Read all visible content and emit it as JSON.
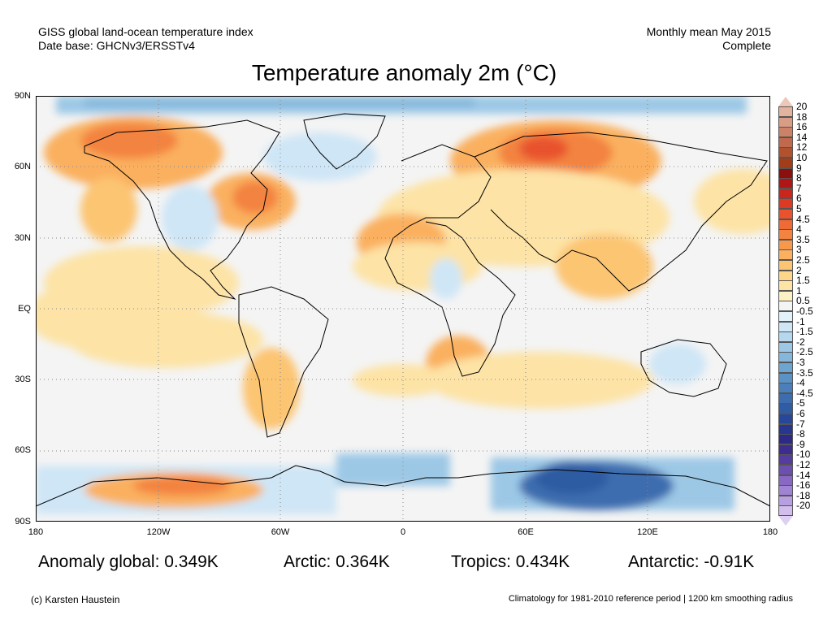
{
  "header": {
    "line1_left": "GISS global land-ocean temperature index",
    "line2_left": "Date base: GHCNv3/ERSSTv4",
    "line1_right": "Monthly mean May 2015",
    "line2_right": "Complete"
  },
  "title": "Temperature anomaly 2m (°C)",
  "lat_labels": [
    "90N",
    "60N",
    "30N",
    "EQ",
    "30S",
    "60S",
    "90S"
  ],
  "lon_labels": [
    "180",
    "120W",
    "60W",
    "0",
    "60E",
    "120E",
    "180"
  ],
  "stats": {
    "global": "Anomaly global: 0.349K",
    "arctic": "Arctic: 0.364K",
    "tropics": "Tropics: 0.434K",
    "antarctic": "Antarctic: -0.91K"
  },
  "footer": {
    "left": "(c) Karsten Haustein",
    "right": "Climatology for 1981-2010 reference period | 1200 km smoothing radius"
  },
  "colorbar": {
    "labels": [
      "20",
      "18",
      "16",
      "14",
      "12",
      "10",
      "9",
      "8",
      "7",
      "6",
      "5",
      "4.5",
      "4",
      "3.5",
      "3",
      "2.5",
      "2",
      "1.5",
      "1",
      "0.5",
      "-0.5",
      "-1",
      "-1.5",
      "-2",
      "-2.5",
      "-3",
      "-3.5",
      "-4",
      "-4.5",
      "-5",
      "-6",
      "-7",
      "-8",
      "-9",
      "-10",
      "-12",
      "-14",
      "-16",
      "-18",
      "-20"
    ],
    "colors": [
      "#e3b39f",
      "#d99c84",
      "#cc8266",
      "#c0694c",
      "#b1522f",
      "#a13d18",
      "#8b0f0f",
      "#b01616",
      "#c9261e",
      "#dd3a26",
      "#e8532e",
      "#ee6a37",
      "#f38341",
      "#f7994d",
      "#fab05e",
      "#fcc572",
      "#fdd68a",
      "#fde3a6",
      "#fdf0c4",
      "#f4f4f4",
      "#e3f1fb",
      "#cfe6f6",
      "#b6d8ef",
      "#9cc8e6",
      "#85b7db",
      "#6ea5d0",
      "#5a92c5",
      "#4a7fba",
      "#3d6daf",
      "#2f5ca3",
      "#27479a",
      "#27378f",
      "#2c2a86",
      "#3e2c8f",
      "#553c9f",
      "#6d4fb0",
      "#8868c2",
      "#a084d3",
      "#b8a0e0",
      "#d2bdec"
    ],
    "top_arrow_color": "#edc8b8",
    "bottom_arrow_color": "#ddd0f3"
  }
}
